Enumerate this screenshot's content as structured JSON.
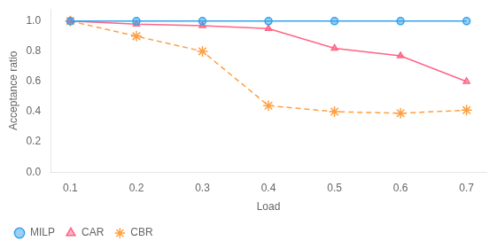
{
  "chart_data": {
    "type": "line",
    "x_label": "Load",
    "y_label": "Acceptance ratio",
    "x": [
      0.1,
      0.2,
      0.3,
      0.4,
      0.5,
      0.6,
      0.7
    ],
    "series": [
      {
        "name": "MILP",
        "values": [
          1.0,
          1.0,
          1.0,
          1.0,
          1.0,
          1.0,
          1.0
        ],
        "marker": "circle",
        "line_style": "solid"
      },
      {
        "name": "CAR",
        "values": [
          1.0,
          0.98,
          0.97,
          0.95,
          0.82,
          0.77,
          0.6
        ],
        "marker": "triangle",
        "line_style": "solid"
      },
      {
        "name": "CBR",
        "values": [
          1.0,
          0.9,
          0.8,
          0.44,
          0.4,
          0.39,
          0.41
        ],
        "marker": "star",
        "line_style": "dashed"
      }
    ],
    "xlim": [
      0.07,
      0.73
    ],
    "ylim": [
      0,
      1.08
    ],
    "xticks": [
      0.1,
      0.2,
      0.3,
      0.4,
      0.5,
      0.6,
      0.7
    ],
    "yticks": [
      {
        "value": 0,
        "label": "0.0"
      },
      0.2,
      0.4,
      0.6,
      0.8,
      {
        "value": 1,
        "label": "1.0"
      }
    ],
    "grid": false,
    "legend": "lower left"
  }
}
